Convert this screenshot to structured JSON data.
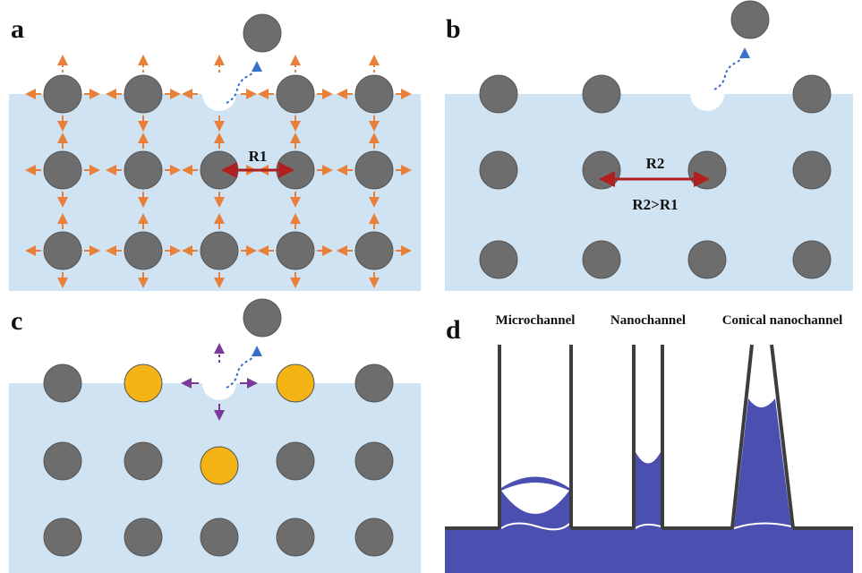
{
  "panels": {
    "a": {
      "label": "a",
      "distance": "R1"
    },
    "b": {
      "label": "b",
      "distance": "R2",
      "comparison": "R2>R1"
    },
    "c": {
      "label": "c"
    },
    "d": {
      "label": "d",
      "channels": [
        "Microchannel",
        "Nanochannel",
        "Conical nanochannel"
      ]
    }
  }
}
